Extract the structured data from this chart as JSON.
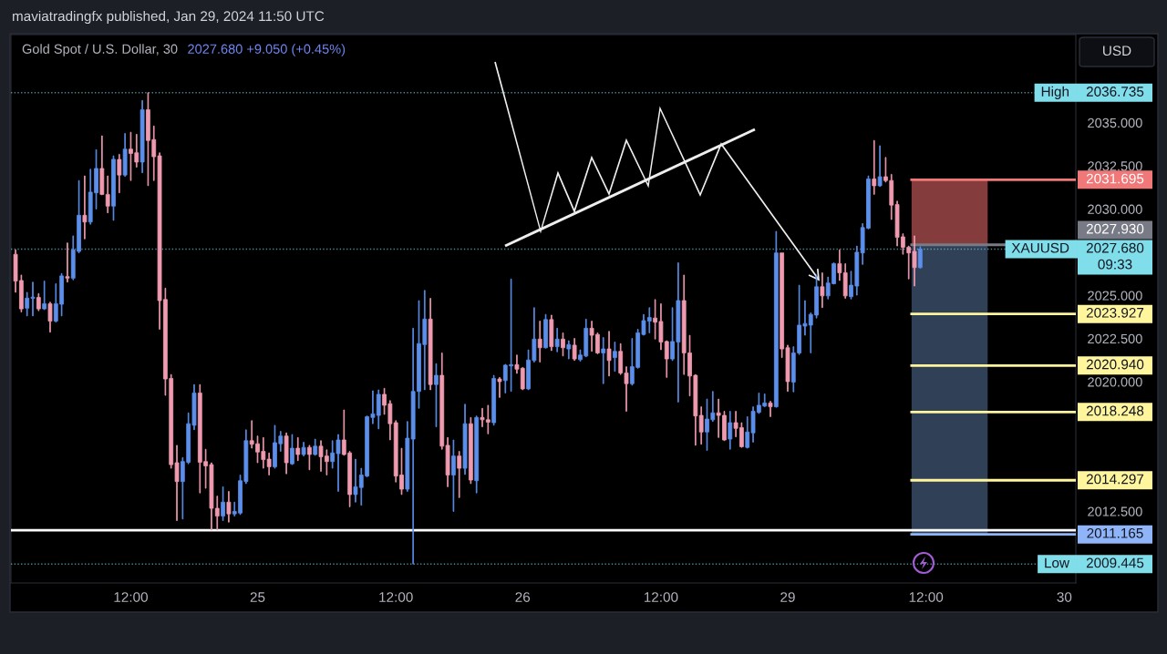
{
  "chart_data": {
    "type": "candlestick",
    "title": "Gold Spot / U.S. Dollar, 30",
    "subtitle": "2027.680 +9.050 (+0.45%)",
    "ylabel": "USD",
    "annotations": [
      "maviatradingfx published, Jan 29, 2024 11:50 UTC"
    ],
    "categories": [
      null,
      null,
      null,
      null,
      null,
      null,
      null,
      null,
      null,
      null,
      null,
      null,
      null,
      null,
      null,
      null,
      null,
      null,
      null,
      null,
      "12:00",
      null,
      null,
      null,
      null,
      null,
      null,
      null,
      null,
      null,
      null,
      null,
      null,
      null,
      null,
      null,
      null,
      null,
      null,
      null,
      null,
      null,
      "25",
      null,
      null,
      null,
      null,
      null,
      null,
      null,
      null,
      null,
      null,
      null,
      null,
      null,
      null,
      null,
      null,
      null,
      null,
      null,
      null,
      null,
      null,
      null,
      "12:00",
      null,
      null,
      null,
      null,
      null,
      null,
      null,
      null,
      null,
      null,
      null,
      null,
      null,
      null,
      null,
      null,
      null,
      null,
      null,
      null,
      null,
      "26",
      null,
      null,
      null,
      null,
      null,
      null,
      null,
      null,
      null,
      null,
      null,
      null,
      null,
      null,
      null,
      null,
      null,
      null,
      null,
      null,
      null,
      null,
      null,
      "12:00",
      null,
      null,
      null,
      null,
      null,
      null,
      null,
      null,
      null,
      null,
      null,
      null,
      null,
      null,
      null,
      null,
      null,
      null,
      null,
      null,
      null,
      "29",
      null,
      null,
      null,
      null,
      null,
      null,
      null,
      null,
      null,
      null,
      null,
      null,
      null,
      null,
      null,
      null,
      null,
      null,
      null,
      null,
      null,
      null,
      null,
      "12:00",
      null,
      null,
      null,
      null,
      null,
      null,
      null,
      null,
      null,
      null,
      null,
      null,
      null,
      null,
      null,
      null,
      null,
      null,
      null,
      null,
      null,
      null,
      null,
      "30",
      null,
      null
    ],
    "ohlc": [
      [
        2027.38,
        2027.64,
        2025.18,
        2025.83
      ],
      [
        2025.86,
        2026.18,
        2024.04,
        2024.22
      ],
      [
        2024.26,
        2025.18,
        2023.81,
        2024.84
      ],
      [
        2024.83,
        2025.77,
        2023.81,
        2024.9
      ],
      [
        2024.88,
        2025.11,
        2024.11,
        2024.22
      ],
      [
        2024.22,
        2025.83,
        2024.17,
        2024.52
      ],
      [
        2024.52,
        2024.61,
        2022.87,
        2023.51
      ],
      [
        2023.51,
        2025.68,
        2023.45,
        2024.52
      ],
      [
        2024.49,
        2026.27,
        2023.81,
        2026.13
      ],
      [
        2026.09,
        2028.04,
        2025.77,
        2026.0
      ],
      [
        2026.0,
        2028.45,
        2025.9,
        2027.64
      ],
      [
        2027.55,
        2031.65,
        2027.46,
        2029.64
      ],
      [
        2029.64,
        2031.92,
        2028.27,
        2029.25
      ],
      [
        2029.25,
        2032.31,
        2029.12,
        2030.98
      ],
      [
        2030.94,
        2033.44,
        2030.0,
        2032.35
      ],
      [
        2032.35,
        2034.24,
        2030.82,
        2030.85
      ],
      [
        2030.85,
        2031.92,
        2029.78,
        2030.17
      ],
      [
        2030.17,
        2033.08,
        2029.34,
        2032.88
      ],
      [
        2032.87,
        2033.17,
        2030.94,
        2031.97
      ],
      [
        2031.97,
        2034.38,
        2031.89,
        2033.47
      ],
      [
        2033.47,
        2034.45,
        2031.65,
        2033.22
      ],
      [
        2033.26,
        2034.33,
        2032.42,
        2032.72
      ],
      [
        2032.72,
        2036.29,
        2032.1,
        2035.75
      ],
      [
        2035.75,
        2036.735,
        2031.35,
        2033.97
      ],
      [
        2034.02,
        2034.81,
        2031.65,
        2033.03
      ],
      [
        2033.08,
        2033.26,
        2023.04,
        2024.7
      ],
      [
        2024.76,
        2025.42,
        2019.21,
        2020.16
      ],
      [
        2020.19,
        2020.42,
        2014.99,
        2015.2
      ],
      [
        2015.31,
        2016.32,
        2011.96,
        2014.22
      ],
      [
        2014.22,
        2015.61,
        2012.05,
        2015.38
      ],
      [
        2015.34,
        2018.2,
        2015.25,
        2017.57
      ],
      [
        2017.48,
        2019.84,
        2017.22,
        2019.35
      ],
      [
        2019.35,
        2019.84,
        2013.56,
        2015.34
      ],
      [
        2015.38,
        2016.09,
        2013.83,
        2015.13
      ],
      [
        2015.2,
        2015.31,
        2011.42,
        2012.67
      ],
      [
        2012.67,
        2013.38,
        2011.42,
        2012.22
      ],
      [
        2012.22,
        2013.92,
        2011.96,
        2013.03
      ],
      [
        2013.03,
        2013.65,
        2011.87,
        2012.35
      ],
      [
        2012.35,
        2013.03,
        2012.22,
        2012.49
      ],
      [
        2012.4,
        2014.6,
        2012.31,
        2014.27
      ],
      [
        2014.22,
        2017.22,
        2014.1,
        2016.59
      ],
      [
        2016.59,
        2017.75,
        2016.15,
        2016.38
      ],
      [
        2016.41,
        2016.86,
        2015.31,
        2015.93
      ],
      [
        2015.97,
        2016.77,
        2014.99,
        2015.49
      ],
      [
        2015.52,
        2015.88,
        2014.6,
        2015.08
      ],
      [
        2015.08,
        2017.48,
        2014.99,
        2016.47
      ],
      [
        2016.41,
        2017.13,
        2015.97,
        2016.86
      ],
      [
        2016.86,
        2017.04,
        2014.67,
        2015.31
      ],
      [
        2015.25,
        2016.95,
        2015.2,
        2016.15
      ],
      [
        2016.15,
        2016.77,
        2015.43,
        2015.79
      ],
      [
        2015.79,
        2016.5,
        2015.7,
        2016.2
      ],
      [
        2016.2,
        2016.32,
        2014.9,
        2015.79
      ],
      [
        2015.79,
        2016.68,
        2015.74,
        2016.27
      ],
      [
        2016.27,
        2016.59,
        2014.81,
        2015.66
      ],
      [
        2015.7,
        2016.06,
        2014.6,
        2015.38
      ],
      [
        2015.38,
        2016.59,
        2014.99,
        2015.88
      ],
      [
        2015.84,
        2016.95,
        2013.65,
        2016.63
      ],
      [
        2016.63,
        2018.37,
        2015.74,
        2015.79
      ],
      [
        2015.88,
        2015.97,
        2012.76,
        2013.47
      ],
      [
        2013.47,
        2015.52,
        2013.03,
        2013.92
      ],
      [
        2013.88,
        2014.99,
        2012.85,
        2014.6
      ],
      [
        2014.54,
        2018.02,
        2014.49,
        2017.98
      ],
      [
        2017.93,
        2019.48,
        2017.57,
        2018.14
      ],
      [
        2018.05,
        2019.53,
        2017.27,
        2019.27
      ],
      [
        2019.27,
        2019.62,
        2018.11,
        2018.64
      ],
      [
        2018.73,
        2018.91,
        2016.63,
        2017.57
      ],
      [
        2017.63,
        2017.75,
        2014.19,
        2014.54
      ],
      [
        2014.6,
        2016.15,
        2013.47,
        2013.78
      ],
      [
        2013.78,
        2017.7,
        2013.65,
        2016.73
      ],
      [
        2016.68,
        2023.1,
        2009.445,
        2019.44
      ],
      [
        2019.44,
        2024.7,
        2018.46,
        2022.21
      ],
      [
        2022.15,
        2025.29,
        2019.53,
        2023.63
      ],
      [
        2023.63,
        2024.83,
        2019.53,
        2019.84
      ],
      [
        2019.84,
        2021.05,
        2017.39,
        2020.37
      ],
      [
        2020.37,
        2021.67,
        2016.09,
        2016.27
      ],
      [
        2016.32,
        2016.77,
        2013.92,
        2014.6
      ],
      [
        2014.6,
        2016.63,
        2012.49,
        2015.7
      ],
      [
        2015.7,
        2015.97,
        2013.29,
        2014.99
      ],
      [
        2014.99,
        2018.7,
        2014.63,
        2017.57
      ],
      [
        2017.57,
        2017.93,
        2014.1,
        2014.31
      ],
      [
        2014.27,
        2018.02,
        2013.56,
        2017.93
      ],
      [
        2017.93,
        2018.46,
        2017.39,
        2017.8
      ],
      [
        2017.8,
        2018.64,
        2016.98,
        2017.66
      ],
      [
        2017.63,
        2020.37,
        2017.48,
        2020.19
      ],
      [
        2020.16,
        2020.25,
        2019.09,
        2020.01
      ],
      [
        2020.07,
        2021.01,
        2019.35,
        2020.96
      ],
      [
        2020.92,
        2025.95,
        2019.44,
        2020.99
      ],
      [
        2020.99,
        2021.55,
        2020.48,
        2020.73
      ],
      [
        2020.78,
        2020.83,
        2019.53,
        2019.59
      ],
      [
        2019.59,
        2021.85,
        2019.53,
        2021.26
      ],
      [
        2021.23,
        2024.29,
        2021.14,
        2022.47
      ],
      [
        2022.47,
        2023.51,
        2021.14,
        2021.97
      ],
      [
        2021.97,
        2023.9,
        2021.94,
        2023.6
      ],
      [
        2023.6,
        2023.86,
        2021.8,
        2022.03
      ],
      [
        2022.03,
        2023.1,
        2021.73,
        2022.47
      ],
      [
        2022.47,
        2022.83,
        2021.49,
        2021.97
      ],
      [
        2021.9,
        2022.38,
        2021.32,
        2022.15
      ],
      [
        2022.12,
        2022.51,
        2021.23,
        2021.32
      ],
      [
        2021.28,
        2021.85,
        2021.19,
        2021.55
      ],
      [
        2021.49,
        2023.63,
        2021.44,
        2023.1
      ],
      [
        2023.1,
        2023.51,
        2021.76,
        2022.69
      ],
      [
        2022.74,
        2022.83,
        2021.62,
        2021.67
      ],
      [
        2021.67,
        2022.56,
        2019.89,
        2021.9
      ],
      [
        2021.9,
        2022.92,
        2020.33,
        2021.23
      ],
      [
        2021.4,
        2022.3,
        2020.6,
        2021.76
      ],
      [
        2021.76,
        2022.21,
        2020.42,
        2020.51
      ],
      [
        2020.51,
        2020.87,
        2018.29,
        2019.89
      ],
      [
        2019.89,
        2022.51,
        2019.8,
        2020.87
      ],
      [
        2020.83,
        2023.04,
        2020.78,
        2022.83
      ],
      [
        2022.74,
        2023.9,
        2022.69,
        2023.54
      ],
      [
        2023.51,
        2024.29,
        2022.83,
        2023.72
      ],
      [
        2023.69,
        2024.76,
        2022.47,
        2023.45
      ],
      [
        2023.49,
        2024.52,
        2021.85,
        2022.3
      ],
      [
        2022.33,
        2022.38,
        2020.25,
        2021.32
      ],
      [
        2021.32,
        2024.29,
        2021.23,
        2022.33
      ],
      [
        2022.3,
        2026.89,
        2018.82,
        2024.7
      ],
      [
        2024.7,
        2026.18,
        2020.42,
        2021.67
      ],
      [
        2021.67,
        2022.69,
        2019.18,
        2020.33
      ],
      [
        2020.37,
        2020.42,
        2016.32,
        2018.02
      ],
      [
        2018.05,
        2018.55,
        2016.38,
        2017.09
      ],
      [
        2017.09,
        2019.0,
        2016.02,
        2017.84
      ],
      [
        2017.8,
        2019.44,
        2017.7,
        2018.2
      ],
      [
        2018.2,
        2019.0,
        2016.77,
        2018.05
      ],
      [
        2018.05,
        2018.29,
        2016.59,
        2016.63
      ],
      [
        2016.68,
        2018.29,
        2016.09,
        2017.63
      ],
      [
        2017.63,
        2018.29,
        2016.81,
        2017.3
      ],
      [
        2017.34,
        2017.63,
        2016.2,
        2016.24
      ],
      [
        2016.2,
        2017.98,
        2016.15,
        2017.09
      ],
      [
        2017.04,
        2018.55,
        2016.5,
        2018.29
      ],
      [
        2018.23,
        2019.35,
        2018.16,
        2018.64
      ],
      [
        2018.59,
        2019.3,
        2018.55,
        2018.77
      ],
      [
        2018.77,
        2018.87,
        2017.98,
        2018.55
      ],
      [
        2018.55,
        2028.71,
        2018.52,
        2027.46
      ],
      [
        2027.46,
        2027.46,
        2021.4,
        2021.9
      ],
      [
        2021.97,
        2022.12,
        2019.44,
        2020.01
      ],
      [
        2019.98,
        2022.03,
        2019.41,
        2021.67
      ],
      [
        2021.67,
        2025.59,
        2021.58,
        2023.28
      ],
      [
        2023.22,
        2024.7,
        2022.69,
        2023.37
      ],
      [
        2023.28,
        2023.99,
        2021.67,
        2023.9
      ],
      [
        2023.86,
        2026.18,
        2023.69,
        2025.5
      ],
      [
        2025.5,
        2026.31,
        2024.29,
        2024.97
      ],
      [
        2024.97,
        2026.07,
        2024.79,
        2025.72
      ],
      [
        2025.68,
        2026.89,
        2025.65,
        2026.84
      ],
      [
        2026.84,
        2027.64,
        2025.86,
        2026.31
      ],
      [
        2026.31,
        2026.84,
        2024.83,
        2024.97
      ],
      [
        2024.93,
        2026.4,
        2024.79,
        2025.59
      ],
      [
        2025.54,
        2027.86,
        2025.01,
        2027.5
      ],
      [
        2027.46,
        2029.16,
        2026.79,
        2028.93
      ],
      [
        2028.89,
        2031.92,
        2028.85,
        2031.74
      ],
      [
        2031.74,
        2033.97,
        2030.85,
        2031.35
      ],
      [
        2031.35,
        2033.67,
        2031.3,
        2031.87
      ],
      [
        2031.87,
        2032.99,
        2031.56,
        2031.65
      ],
      [
        2031.65,
        2032.01,
        2029.39,
        2030.23
      ],
      [
        2030.26,
        2030.46,
        2027.86,
        2028.36
      ],
      [
        2028.39,
        2028.57,
        2027.38,
        2027.79
      ],
      [
        2027.79,
        2027.86,
        2025.95,
        2027.46
      ],
      [
        2027.55,
        2028.45,
        2025.54,
        2026.61
      ],
      [
        2026.61,
        2027.82,
        2026.57,
        2027.68
      ],
      null,
      null,
      null,
      null,
      null,
      null,
      null,
      null,
      null,
      null,
      null,
      null,
      null,
      null,
      null,
      null,
      null,
      null,
      null,
      null,
      null,
      null,
      null,
      null,
      null,
      null,
      null
    ],
    "colors": [
      "#f09ab0",
      "#f09ab0",
      "#5b8feb",
      "#5b8feb",
      "#f09ab0",
      "#5b8feb",
      "#f09ab0",
      "#5b8feb",
      "#5b8feb",
      "#f09ab0",
      "#5b8feb",
      "#5b8feb",
      "#f09ab0",
      "#5b8feb",
      "#5b8feb",
      "#f09ab0",
      "#f09ab0",
      "#5b8feb",
      "#f09ab0",
      "#5b8feb",
      "#f09ab0",
      "#f09ab0",
      "#5b8feb",
      "#f09ab0",
      "#f09ab0",
      "#f09ab0",
      "#f09ab0",
      "#f09ab0",
      "#f09ab0",
      "#5b8feb",
      "#5b8feb",
      "#5b8feb",
      "#f09ab0",
      "#f09ab0",
      "#f09ab0",
      "#f09ab0",
      "#5b8feb",
      "#f09ab0",
      "#5b8feb",
      "#5b8feb",
      "#5b8feb",
      "#f09ab0",
      "#f09ab0",
      "#f09ab0",
      "#f09ab0",
      "#5b8feb",
      "#5b8feb",
      "#f09ab0",
      "#5b8feb",
      "#f09ab0",
      "#5b8feb",
      "#f09ab0",
      "#5b8feb",
      "#f09ab0",
      "#f09ab0",
      "#5b8feb",
      "#5b8feb",
      "#f09ab0",
      "#f09ab0",
      "#5b8feb",
      "#5b8feb",
      "#5b8feb",
      "#5b8feb",
      "#5b8feb",
      "#f09ab0",
      "#f09ab0",
      "#f09ab0",
      "#f09ab0",
      "#5b8feb",
      "#5b8feb",
      "#5b8feb",
      "#5b8feb",
      "#f09ab0",
      "#5b8feb",
      "#f09ab0",
      "#f09ab0",
      "#5b8feb",
      "#f09ab0",
      "#5b8feb",
      "#f09ab0",
      "#5b8feb",
      "#f09ab0",
      "#f09ab0",
      "#5b8feb",
      "#f09ab0",
      "#5b8feb",
      "#5b8feb",
      "#f09ab0",
      "#f09ab0",
      "#5b8feb",
      "#5b8feb",
      "#f09ab0",
      "#5b8feb",
      "#f09ab0",
      "#5b8feb",
      "#f09ab0",
      "#5b8feb",
      "#f09ab0",
      "#5b8feb",
      "#5b8feb",
      "#f09ab0",
      "#f09ab0",
      "#5b8feb",
      "#f09ab0",
      "#5b8feb",
      "#f09ab0",
      "#f09ab0",
      "#5b8feb",
      "#5b8feb",
      "#5b8feb",
      "#5b8feb",
      "#f09ab0",
      "#f09ab0",
      "#f09ab0",
      "#5b8feb",
      "#5b8feb",
      "#f09ab0",
      "#f09ab0",
      "#f09ab0",
      "#f09ab0",
      "#5b8feb",
      "#5b8feb",
      "#f09ab0",
      "#f09ab0",
      "#5b8feb",
      "#f09ab0",
      "#f09ab0",
      "#5b8feb",
      "#5b8feb",
      "#5b8feb",
      "#5b8feb",
      "#f09ab0",
      "#5b8feb",
      "#f09ab0",
      "#f09ab0",
      "#5b8feb",
      "#5b8feb",
      "#5b8feb",
      "#5b8feb",
      "#5b8feb",
      "#f09ab0",
      "#5b8feb",
      "#5b8feb",
      "#f09ab0",
      "#f09ab0",
      "#5b8feb",
      "#5b8feb",
      "#5b8feb",
      "#5b8feb",
      "#f09ab0",
      "#5b8feb",
      "#f09ab0",
      "#f09ab0",
      "#f09ab0",
      "#f09ab0",
      "#f09ab0",
      "#f09ab0",
      "#5b8feb",
      null,
      null,
      null,
      null,
      null,
      null,
      null,
      null,
      null,
      null,
      null,
      null,
      null,
      null,
      null,
      null,
      null,
      null,
      null,
      null,
      null,
      null,
      null,
      null,
      null,
      null,
      null
    ],
    "ylim": [
      2008.35,
      2040.1
    ],
    "yticks": [
      {
        "value": 2012.5,
        "label": "2012.500"
      },
      {
        "value": 2020,
        "label": "2020.000"
      },
      {
        "value": 2022.5,
        "label": "2022.500"
      },
      {
        "value": 2025,
        "label": "2025.000"
      },
      {
        "value": 2030,
        "label": "2030.000"
      },
      {
        "value": 2032.5,
        "label": "2032.500"
      },
      {
        "value": 2035,
        "label": "2035.000"
      }
    ],
    "bands": [
      {
        "axis": "y",
        "from": 2027.93,
        "to": 2031.695,
        "color": "#853c3c"
      },
      {
        "axis": "y",
        "from": 2011.165,
        "to": 2027.93,
        "color": "#304056"
      }
    ],
    "ref_lines": [
      {
        "axis": "y",
        "value": 2036.735,
        "label": "High 2036.735",
        "color": "#80deea",
        "line_style": "dotted"
      },
      {
        "axis": "y",
        "value": 2031.695,
        "label": "2031.695",
        "color": "#f07878",
        "line_style": "solid"
      },
      {
        "axis": "y",
        "value": 2027.93,
        "label": "2027.930",
        "color": "#787b86",
        "line_style": "solid"
      },
      {
        "axis": "y",
        "value": 2027.68,
        "label": "XAUUSD 2027.680 09:33",
        "color": "#80deea",
        "line_style": "dotted"
      },
      {
        "axis": "y",
        "value": 2023.927,
        "label": "2023.927",
        "color": "#fff59d",
        "line_style": "solid"
      },
      {
        "axis": "y",
        "value": 2020.94,
        "label": "2020.940",
        "color": "#fff59d",
        "line_style": "solid"
      },
      {
        "axis": "y",
        "value": 2018.248,
        "label": "2018.248",
        "color": "#fff59d",
        "line_style": "solid"
      },
      {
        "axis": "y",
        "value": 2014.297,
        "label": "2014.297",
        "color": "#fff59d",
        "line_style": "solid"
      },
      {
        "axis": "y",
        "value": 2011.4,
        "color": "#ffffff",
        "line_style": "solid"
      },
      {
        "axis": "y",
        "value": 2011.165,
        "label": "2011.165",
        "color": "#90b4f8",
        "line_style": "solid"
      },
      {
        "axis": "y",
        "value": 2009.445,
        "label": "Low 2009.445",
        "color": "#80deea",
        "line_style": "dotted"
      }
    ]
  }
}
